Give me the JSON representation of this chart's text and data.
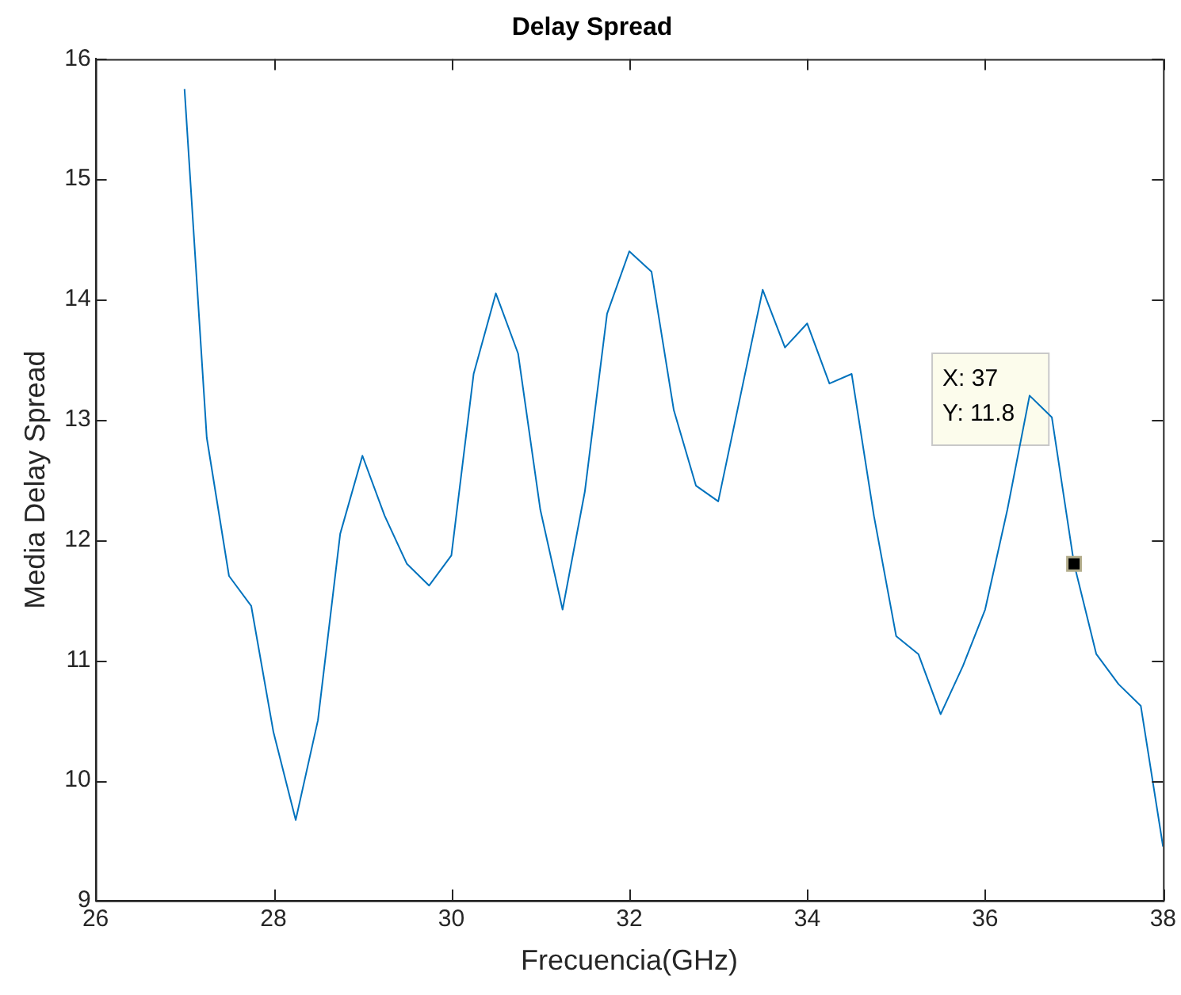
{
  "chart_data": {
    "type": "line",
    "title": "Delay Spread",
    "xlabel": "Frecuencia(GHz)",
    "ylabel": "Media Delay Spread",
    "x": [
      27,
      27.25,
      27.5,
      27.75,
      28,
      28.25,
      28.5,
      28.75,
      29,
      29.25,
      29.5,
      29.75,
      30,
      30.25,
      30.5,
      30.75,
      31,
      31.25,
      31.5,
      31.75,
      32,
      32.25,
      32.5,
      32.75,
      33,
      33.25,
      33.5,
      33.75,
      34,
      34.25,
      34.5,
      34.75,
      35,
      35.25,
      35.5,
      35.75,
      36,
      36.25,
      36.5,
      36.75,
      37,
      37.25,
      37.5,
      37.75,
      38
    ],
    "series": [
      {
        "type": "scatter",
        "color": "#000000",
        "marker": "square",
        "x": [
          37
        ],
        "values": [
          11.8
        ]
      },
      {
        "color": "#0072bd",
        "values": [
          15.75,
          12.85,
          11.7,
          11.45,
          10.4,
          9.67,
          10.5,
          12.05,
          12.7,
          12.2,
          11.8,
          11.62,
          11.87,
          13.38,
          14.05,
          13.55,
          12.25,
          11.42,
          12.4,
          13.88,
          14.4,
          14.23,
          13.08,
          12.45,
          12.32,
          13.2,
          14.08,
          13.6,
          13.8,
          13.3,
          13.38,
          12.2,
          11.2,
          11.05,
          10.55,
          10.95,
          11.42,
          12.25,
          13.2,
          13.02,
          11.8,
          11.05,
          10.8,
          10.62,
          9.45
        ]
      }
    ],
    "xlim": [
      26,
      38
    ],
    "xticks": [
      26,
      28,
      30,
      32,
      34,
      36,
      38
    ],
    "ylim": [
      9,
      16
    ],
    "yticks": [
      9,
      10,
      11,
      12,
      13,
      14,
      15,
      16
    ],
    "annotations": [
      "X: 37\nY: 11.8"
    ],
    "grid": false,
    "legend": false,
    "marker": "none",
    "line_style": "solid"
  }
}
